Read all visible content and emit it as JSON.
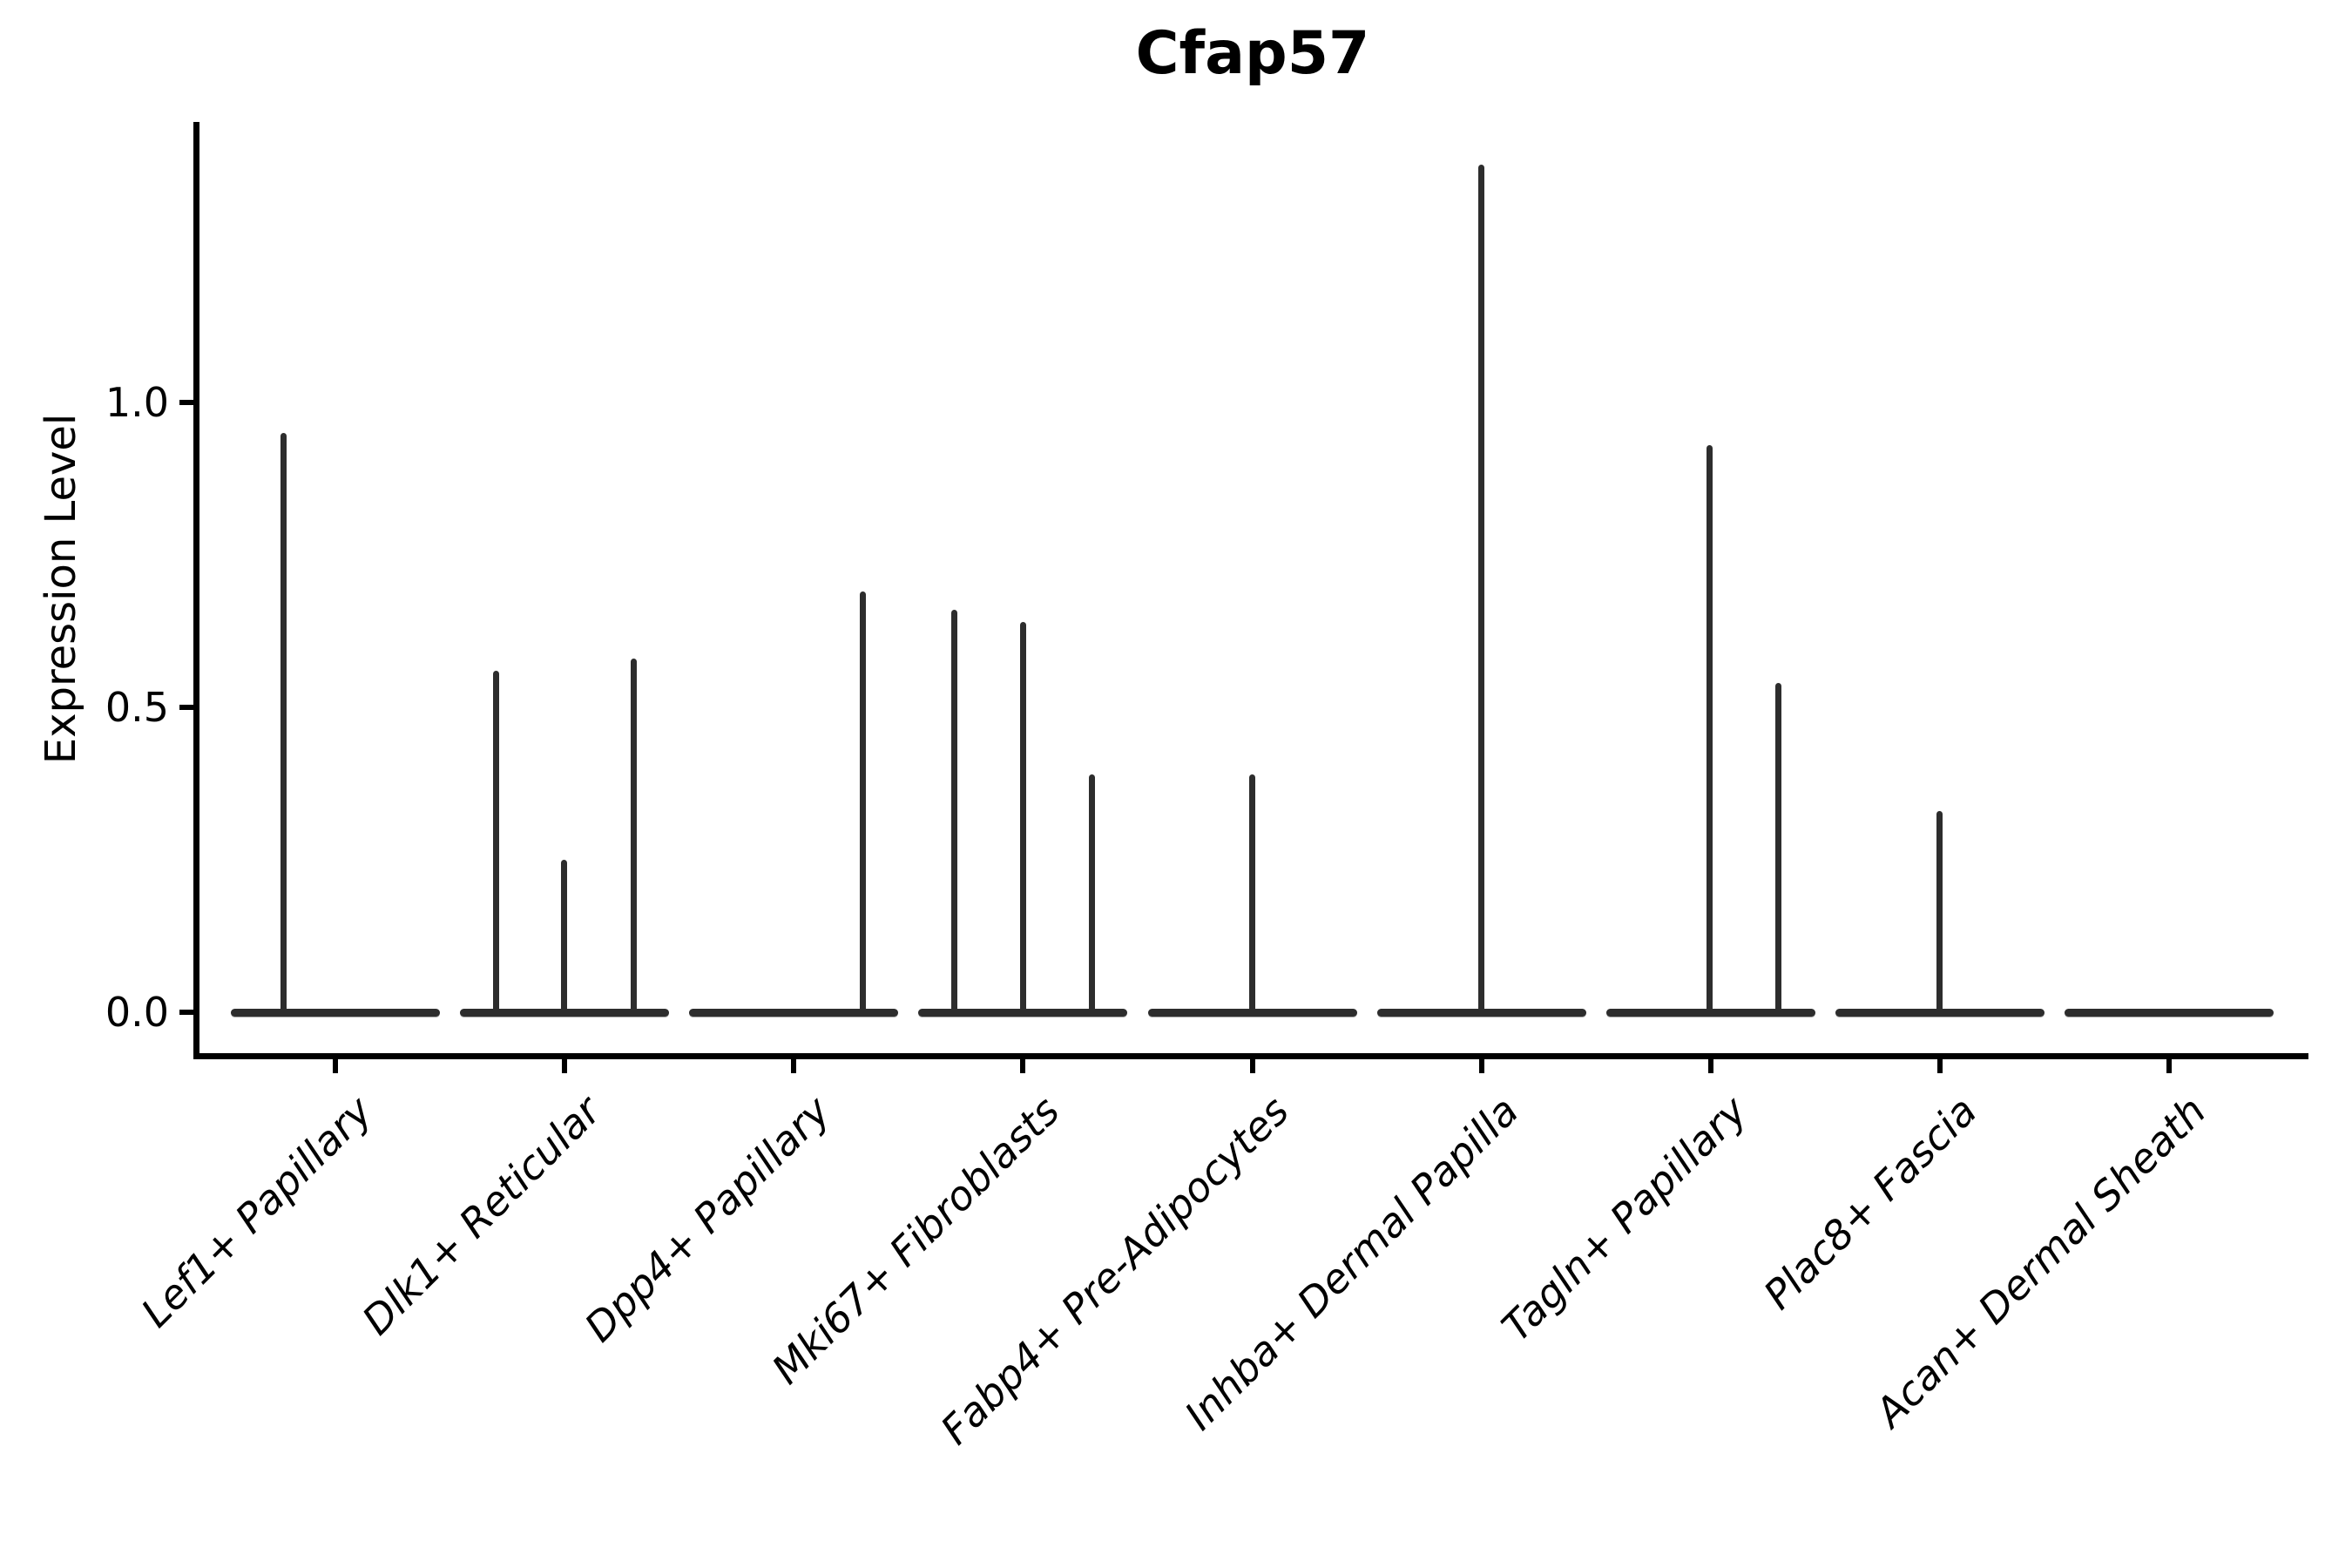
{
  "title": "Cfap57",
  "ylabel": "Expression Level",
  "chart_data": {
    "type": "violin",
    "title": "Cfap57",
    "xlabel": "",
    "ylabel": "Expression Level",
    "ylim": [
      -0.08,
      1.46
    ],
    "grid": false,
    "legend": "none",
    "yticks": [
      {
        "label": "0.0",
        "value": 0.0
      },
      {
        "label": "0.5",
        "value": 0.5
      },
      {
        "label": "1.0",
        "value": 1.0
      }
    ],
    "categories": [
      "Lef1+ Papillary",
      "Dlk1+ Reticular",
      "Dpp4+ Papillary",
      "Mki67+ Fibroblasts",
      "Fabp4+ Pre-Adipocytes",
      "Inhba+ Dermal Papilla",
      "Tagln+ Papillary",
      "Plac8+ Fascia",
      "Acan+ Dermal Sheath"
    ],
    "description": "Needle-style violins: bulk of expression mass at 0 (flat baseline lens per category); thin needles mark sub-violin tails reaching their max expression values.",
    "groups": [
      {
        "category": "Lef1+ Papillary",
        "baseline_value": 0.0,
        "needles": [
          {
            "offset": -0.228,
            "max": 0.95
          }
        ]
      },
      {
        "category": "Dlk1+ Reticular",
        "baseline_value": 0.0,
        "needles": [
          {
            "offset": -0.3,
            "max": 0.56
          },
          {
            "offset": -0.004,
            "max": 0.25
          },
          {
            "offset": 0.3,
            "max": 0.58
          }
        ]
      },
      {
        "category": "Dpp4+ Papillary",
        "baseline_value": 0.0,
        "needles": [
          {
            "offset": 0.3,
            "max": 0.69
          }
        ]
      },
      {
        "category": "Mki67+ Fibroblasts",
        "baseline_value": 0.0,
        "needles": [
          {
            "offset": -0.3,
            "max": 0.66
          },
          {
            "offset": 0.0,
            "max": 0.64
          },
          {
            "offset": 0.3,
            "max": 0.39
          }
        ]
      },
      {
        "category": "Fabp4+ Pre-Adipocytes",
        "baseline_value": 0.0,
        "needles": [
          {
            "offset": 0.0,
            "max": 0.39
          }
        ]
      },
      {
        "category": "Inhba+ Dermal Papilla",
        "baseline_value": 0.0,
        "needles": [
          {
            "offset": 0.0,
            "max": 1.39
          }
        ]
      },
      {
        "category": "Tagln+ Papillary",
        "baseline_value": 0.0,
        "needles": [
          {
            "offset": -0.004,
            "max": 0.93
          },
          {
            "offset": 0.297,
            "max": 0.54
          }
        ]
      },
      {
        "category": "Plac8+ Fascia",
        "baseline_value": 0.0,
        "needles": [
          {
            "offset": 0.0,
            "max": 0.33
          }
        ]
      },
      {
        "category": "Acan+ Dermal Sheath",
        "baseline_value": 0.0,
        "needles": []
      }
    ],
    "colors": {
      "ink": "#000000",
      "violin": "#2d2d2d",
      "background": "#ffffff"
    }
  }
}
